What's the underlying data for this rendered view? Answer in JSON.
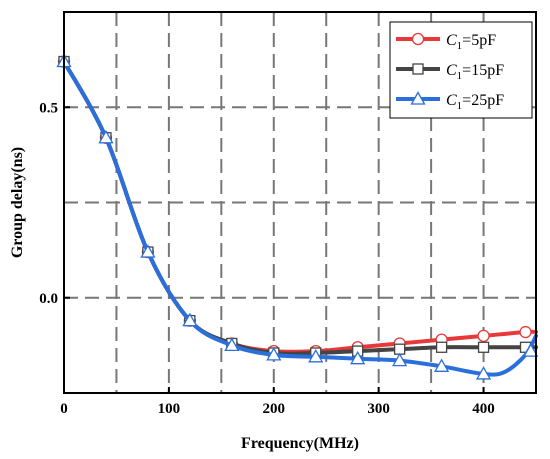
{
  "chart_data": {
    "type": "line",
    "title": "",
    "xlabel": "Frequency(MHz)",
    "ylabel": "Group delay(ns)",
    "xlim": [
      0,
      450
    ],
    "ylim": [
      -0.25,
      0.75
    ],
    "xticks": [
      0,
      100,
      200,
      300,
      400
    ],
    "xtick_labels": [
      "0",
      "100",
      "200",
      "300",
      "400"
    ],
    "yticks": [
      0.5,
      0.0
    ],
    "ytick_labels": [
      "0.5",
      "0.0"
    ],
    "grid": "dashed",
    "legend_position": "top-right",
    "series": [
      {
        "name_symbol": "C",
        "name_sub": "1",
        "name_rest": "=5pF",
        "color": "#e8383a",
        "marker": "circle",
        "x": [
          0,
          40,
          80,
          120,
          160,
          200,
          240,
          280,
          320,
          360,
          400,
          440,
          450
        ],
        "y": [
          0.62,
          0.42,
          0.12,
          -0.06,
          -0.12,
          -0.14,
          -0.14,
          -0.13,
          -0.12,
          -0.11,
          -0.1,
          -0.09,
          -0.09
        ],
        "marker_x": [
          0,
          40,
          80,
          120,
          160,
          200,
          240,
          280,
          320,
          360,
          400,
          440
        ],
        "marker_y": [
          0.62,
          0.42,
          0.12,
          -0.06,
          -0.12,
          -0.14,
          -0.14,
          -0.13,
          -0.12,
          -0.11,
          -0.1,
          -0.09
        ]
      },
      {
        "name_symbol": "C",
        "name_sub": "1",
        "name_rest": "=15pF",
        "color": "#444444",
        "marker": "square",
        "x": [
          0,
          40,
          80,
          120,
          160,
          200,
          240,
          280,
          320,
          360,
          400,
          440,
          450
        ],
        "y": [
          0.62,
          0.42,
          0.12,
          -0.06,
          -0.12,
          -0.145,
          -0.145,
          -0.14,
          -0.135,
          -0.13,
          -0.13,
          -0.13,
          -0.13
        ],
        "marker_x": [
          0,
          40,
          80,
          120,
          160,
          200,
          240,
          280,
          320,
          360,
          400,
          440
        ],
        "marker_y": [
          0.62,
          0.42,
          0.12,
          -0.06,
          -0.12,
          -0.145,
          -0.145,
          -0.14,
          -0.135,
          -0.13,
          -0.13,
          -0.13
        ]
      },
      {
        "name_symbol": "C",
        "name_sub": "1",
        "name_rest": "=25pF",
        "color": "#2a6fdb",
        "marker": "triangle",
        "x": [
          0,
          40,
          80,
          120,
          160,
          200,
          240,
          280,
          320,
          360,
          400,
          420,
          440,
          450
        ],
        "y": [
          0.62,
          0.42,
          0.12,
          -0.06,
          -0.125,
          -0.15,
          -0.155,
          -0.16,
          -0.165,
          -0.18,
          -0.2,
          -0.195,
          -0.15,
          -0.1
        ],
        "marker_x": [
          0,
          40,
          80,
          120,
          160,
          200,
          240,
          280,
          320,
          360,
          400,
          445
        ],
        "marker_y": [
          0.62,
          0.42,
          0.12,
          -0.06,
          -0.125,
          -0.15,
          -0.155,
          -0.16,
          -0.165,
          -0.18,
          -0.2,
          -0.14
        ]
      }
    ]
  }
}
